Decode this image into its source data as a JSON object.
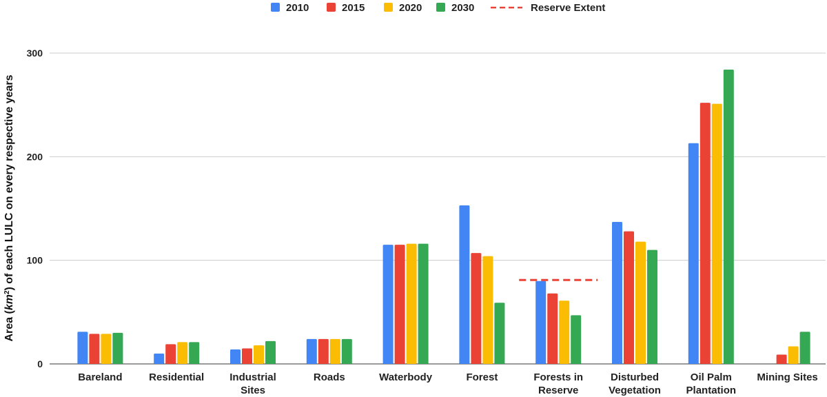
{
  "chart_data": {
    "type": "bar",
    "ylabel_prefix": "Area (",
    "ylabel_unit": "km",
    "ylabel_sup": "2",
    "ylabel_suffix": ")  of each  LULC on every respective years",
    "ylim": [
      0,
      300
    ],
    "yticks": [
      "0",
      "100",
      "200",
      "300"
    ],
    "grid": true,
    "legend_position": "top-center",
    "categories": [
      [
        "Bareland"
      ],
      [
        "Residential"
      ],
      [
        "Industrial",
        "Sites"
      ],
      [
        "Roads"
      ],
      [
        "Waterbody"
      ],
      [
        "Forest"
      ],
      [
        "Forests in",
        "Reserve"
      ],
      [
        "Disturbed",
        "Vegetation"
      ],
      [
        "Oil Palm",
        "Plantation"
      ],
      [
        "Mining Sites"
      ]
    ],
    "series": [
      {
        "name": "2010",
        "color": "#4285F4",
        "values": [
          31,
          10,
          14,
          24,
          115,
          153,
          80,
          137,
          213,
          null
        ]
      },
      {
        "name": "2015",
        "color": "#EA4335",
        "values": [
          29,
          19,
          15,
          24,
          115,
          107,
          68,
          128,
          252,
          9
        ]
      },
      {
        "name": "2020",
        "color": "#FBBC04",
        "values": [
          29,
          21,
          18,
          24,
          116,
          104,
          61,
          118,
          251,
          17
        ]
      },
      {
        "name": "2030",
        "color": "#34A853",
        "values": [
          30,
          21,
          22,
          24,
          116,
          59,
          47,
          110,
          284,
          31
        ]
      }
    ],
    "reference_line": {
      "name": "Reserve Extent",
      "color": "#EA4335",
      "category_index": 6,
      "value": 81
    }
  }
}
